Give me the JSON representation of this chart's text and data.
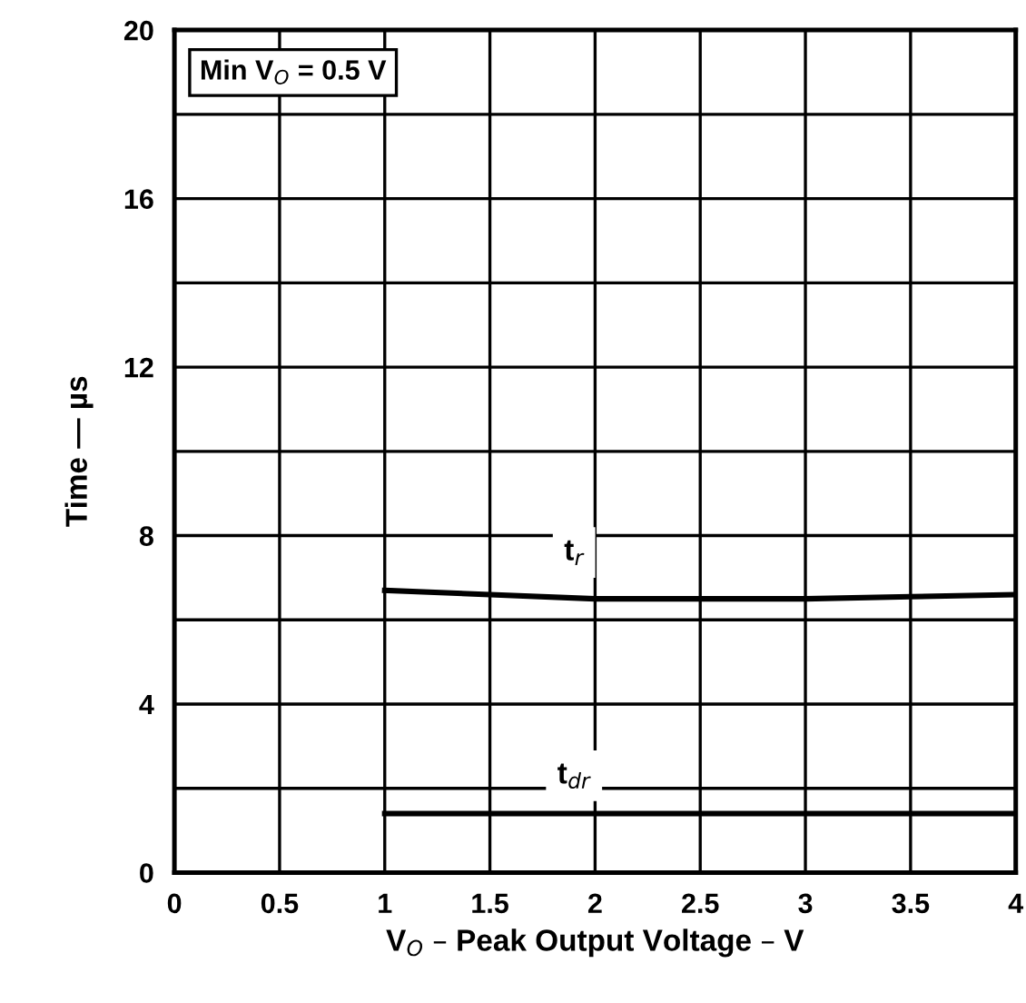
{
  "chart_data": {
    "type": "line",
    "xlabel": "V$_{O}$ – Peak Output Voltage – V",
    "ylabel": "Time — µs",
    "x": [
      1,
      1.5,
      2,
      2.5,
      3,
      3.5,
      4
    ],
    "series": [
      {
        "color": "#000000",
        "values": [
          6.7,
          6.6,
          6.5,
          6.5,
          6.5,
          6.55,
          6.6
        ]
      },
      {
        "color": "#000000",
        "values": [
          1.4,
          1.4,
          1.4,
          1.4,
          1.4,
          1.4,
          1.4
        ]
      }
    ],
    "xlim": [
      0,
      4
    ],
    "xticks": [
      0,
      0.5,
      1,
      1.5,
      2,
      2.5,
      3,
      3.5,
      4
    ],
    "ylim": [
      0,
      20
    ],
    "yticks": [
      0,
      {
        "value": 2,
        "label": null
      },
      4,
      {
        "value": 6,
        "label": null
      },
      8,
      {
        "value": 10,
        "label": null
      },
      12,
      {
        "value": 14,
        "label": null
      },
      16,
      {
        "value": 18,
        "label": null
      },
      20
    ],
    "grid": true,
    "marker": "none",
    "line_style": "solid",
    "annotations": [
      "Min V$_{O}$ = 0.5 V",
      {
        "text": "t$_{r}$",
        "x": 1.9,
        "y": 7.6
      },
      {
        "text": "t$_{dr}$",
        "x": 1.9,
        "y": 2.3
      }
    ]
  }
}
